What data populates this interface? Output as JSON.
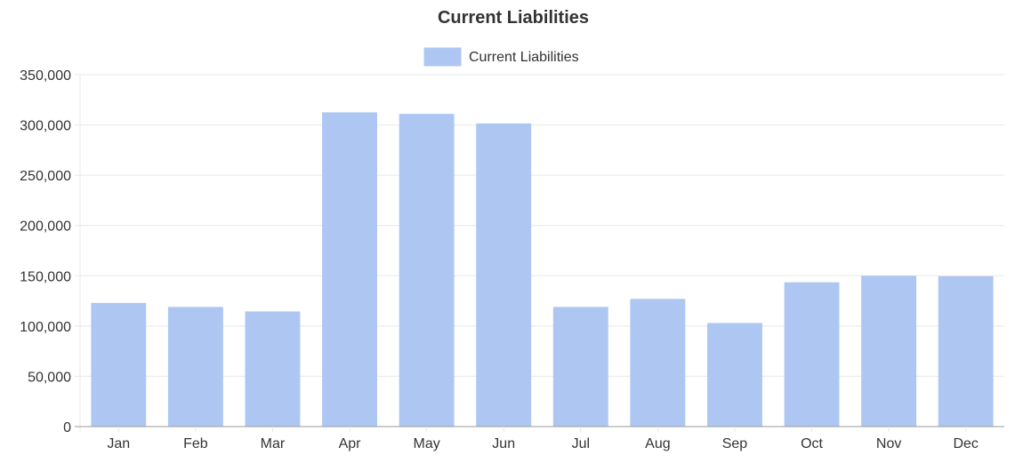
{
  "chart_data": {
    "type": "bar",
    "title": "Current Liabilities",
    "xlabel": "",
    "ylabel": "",
    "categories": [
      "Jan",
      "Feb",
      "Mar",
      "Apr",
      "May",
      "Jun",
      "Jul",
      "Aug",
      "Sep",
      "Oct",
      "Nov",
      "Dec"
    ],
    "series": [
      {
        "name": "Current Liabilities",
        "values": [
          123000,
          119000,
          114500,
          312500,
          311000,
          301500,
          119000,
          127000,
          103000,
          143500,
          150000,
          149500
        ],
        "color": "#aec7f2"
      }
    ],
    "ylim": [
      0,
      350000
    ],
    "yticks": [
      "0",
      "50,000",
      "100,000",
      "150,000",
      "200,000",
      "250,000",
      "300,000",
      "350,000"
    ],
    "ytick_values": [
      0,
      50000,
      100000,
      150000,
      200000,
      250000,
      300000,
      350000
    ],
    "grid": true,
    "legend_position": "top-center",
    "colors": {
      "grid": "#e8e8e8",
      "axis": "#999999",
      "text": "#333333"
    }
  }
}
